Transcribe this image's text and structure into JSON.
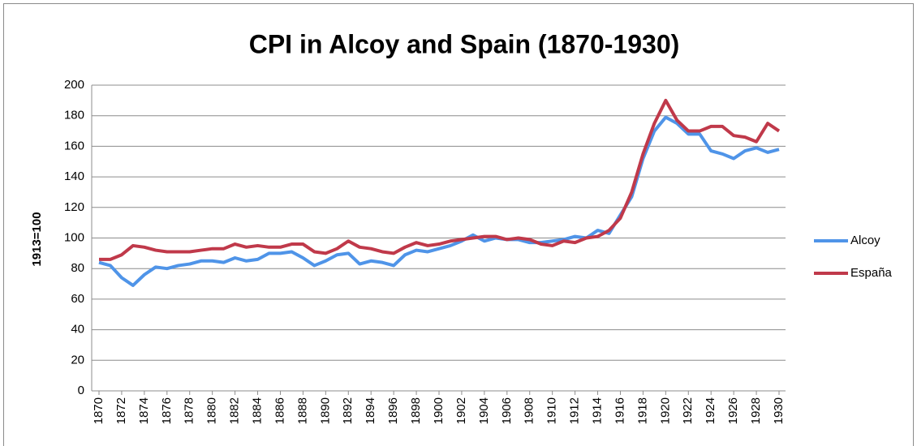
{
  "chart_data": {
    "type": "line",
    "title": "CPI in Alcoy and Spain (1870-1930)",
    "y_label": "1913=100",
    "x": [
      1870,
      1871,
      1872,
      1873,
      1874,
      1875,
      1876,
      1877,
      1878,
      1879,
      1880,
      1881,
      1882,
      1883,
      1884,
      1885,
      1886,
      1887,
      1888,
      1889,
      1890,
      1891,
      1892,
      1893,
      1894,
      1895,
      1896,
      1897,
      1898,
      1899,
      1900,
      1901,
      1902,
      1903,
      1904,
      1905,
      1906,
      1907,
      1908,
      1909,
      1910,
      1911,
      1912,
      1913,
      1914,
      1915,
      1916,
      1917,
      1918,
      1919,
      1920,
      1921,
      1922,
      1923,
      1924,
      1925,
      1926,
      1927,
      1928,
      1929,
      1930
    ],
    "series": [
      {
        "name": "Alcoy",
        "color": "#4f94e8",
        "values": [
          84,
          82,
          74,
          69,
          76,
          81,
          80,
          82,
          83,
          85,
          85,
          84,
          87,
          85,
          86,
          90,
          90,
          91,
          87,
          82,
          85,
          89,
          90,
          83,
          85,
          84,
          82,
          89,
          92,
          91,
          93,
          95,
          98,
          102,
          98,
          100,
          99,
          99,
          97,
          97,
          98,
          99,
          101,
          100,
          105,
          103,
          115,
          127,
          152,
          170,
          179,
          175,
          168,
          168,
          157,
          155,
          152,
          157,
          159,
          156,
          158
        ]
      },
      {
        "name": "España",
        "color": "#c0394a",
        "values": [
          86,
          86,
          89,
          95,
          94,
          92,
          91,
          91,
          91,
          92,
          93,
          93,
          96,
          94,
          95,
          94,
          94,
          96,
          96,
          91,
          90,
          93,
          98,
          94,
          93,
          91,
          90,
          94,
          97,
          95,
          96,
          98,
          99,
          100,
          101,
          101,
          99,
          100,
          99,
          96,
          95,
          98,
          97,
          100,
          101,
          105,
          113,
          130,
          155,
          175,
          190,
          177,
          170,
          170,
          173,
          173,
          167,
          166,
          163,
          175,
          170
        ]
      }
    ],
    "xlim": [
      1870,
      1930
    ],
    "xticks": [
      1870,
      1872,
      1874,
      1876,
      1878,
      1880,
      1882,
      1884,
      1886,
      1888,
      1890,
      1892,
      1894,
      1896,
      1898,
      1900,
      1902,
      1904,
      1906,
      1908,
      1910,
      1912,
      1914,
      1916,
      1918,
      1920,
      1922,
      1924,
      1926,
      1928,
      1930
    ],
    "ylim": [
      0,
      200
    ],
    "yticks": [
      0,
      20,
      40,
      60,
      80,
      100,
      120,
      140,
      160,
      180,
      200
    ],
    "grid": true,
    "legend": "right"
  }
}
